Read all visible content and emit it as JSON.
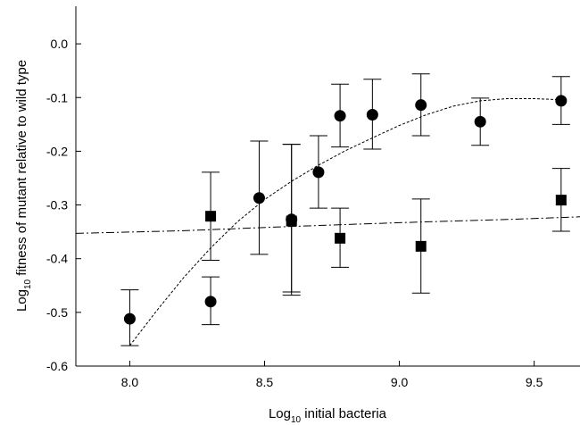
{
  "chart_data": {
    "type": "scatter",
    "title": "",
    "xlabel": {
      "prefix": "Log",
      "subscript": "10",
      "suffix": " initial bacteria"
    },
    "ylabel": {
      "prefix": "Log",
      "subscript": "10",
      "suffix": " fitness of mutant relative to wild type"
    },
    "xlim": [
      7.8,
      9.67
    ],
    "ylim": [
      -0.6,
      0.07
    ],
    "x_ticks": [
      8.0,
      8.5,
      9.0,
      9.5
    ],
    "x_tick_labels": [
      "8.0",
      "8.5",
      "9.0",
      "9.5"
    ],
    "y_ticks": [
      0.0,
      -0.1,
      -0.2,
      -0.3,
      -0.4,
      -0.5,
      -0.6
    ],
    "y_tick_labels": [
      "0.0",
      "-0.1",
      "-0.2",
      "-0.3",
      "-0.4",
      "-0.5",
      "-0.6"
    ],
    "grid": false,
    "series": [
      {
        "marker": "circle",
        "color": "#000000",
        "points": [
          {
            "x": 8.0,
            "y": -0.512,
            "lo": -0.562,
            "hi": -0.458
          },
          {
            "x": 8.3,
            "y": -0.48,
            "lo": -0.523,
            "hi": -0.434
          },
          {
            "x": 8.48,
            "y": -0.287,
            "lo": -0.392,
            "hi": -0.181
          },
          {
            "x": 8.6,
            "y": -0.327,
            "lo": -0.468,
            "hi": -0.187
          },
          {
            "x": 8.7,
            "y": -0.239,
            "lo": -0.306,
            "hi": -0.171
          },
          {
            "x": 8.78,
            "y": -0.134,
            "lo": -0.192,
            "hi": -0.075
          },
          {
            "x": 8.9,
            "y": -0.132,
            "lo": -0.196,
            "hi": -0.066
          },
          {
            "x": 9.08,
            "y": -0.114,
            "lo": -0.171,
            "hi": -0.056
          },
          {
            "x": 9.3,
            "y": -0.145,
            "lo": -0.189,
            "hi": -0.101
          },
          {
            "x": 9.6,
            "y": -0.106,
            "lo": -0.15,
            "hi": -0.061
          }
        ]
      },
      {
        "marker": "square",
        "color": "#000000",
        "points": [
          {
            "x": 8.3,
            "y": -0.321,
            "lo": -0.403,
            "hi": -0.239
          },
          {
            "x": 8.6,
            "y": -0.33,
            "lo": -0.462,
            "hi": -0.187
          },
          {
            "x": 8.78,
            "y": -0.362,
            "lo": -0.416,
            "hi": -0.306
          },
          {
            "x": 9.08,
            "y": -0.377,
            "lo": -0.464,
            "hi": -0.289
          },
          {
            "x": 9.6,
            "y": -0.291,
            "lo": -0.349,
            "hi": -0.232
          }
        ]
      }
    ],
    "fit_lines": [
      {
        "style": "short-dashed",
        "color": "#000000",
        "x": [
          8.0,
          8.1,
          8.2,
          8.3,
          8.4,
          8.5,
          8.6,
          8.7,
          8.8,
          8.9,
          9.0,
          9.1,
          9.2,
          9.3,
          9.4,
          9.5,
          9.6
        ],
        "y": [
          -0.562,
          -0.497,
          -0.435,
          -0.38,
          -0.331,
          -0.29,
          -0.256,
          -0.226,
          -0.199,
          -0.175,
          -0.152,
          -0.132,
          -0.116,
          -0.106,
          -0.102,
          -0.102,
          -0.104
        ]
      },
      {
        "style": "dash-dot",
        "color": "#000000",
        "x": [
          7.8,
          8.2,
          8.6,
          9.0,
          9.4,
          9.67
        ],
        "y": [
          -0.353,
          -0.348,
          -0.34,
          -0.333,
          -0.327,
          -0.322
        ]
      }
    ]
  }
}
